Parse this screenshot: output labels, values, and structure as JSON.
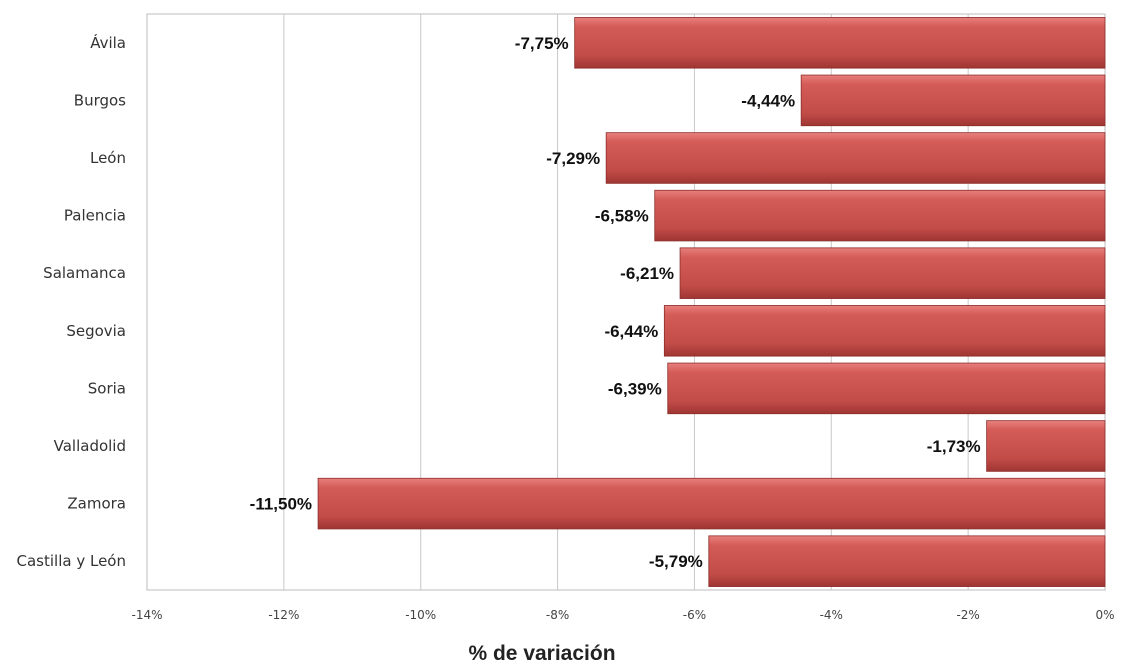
{
  "chart_data": {
    "type": "bar",
    "orientation": "horizontal",
    "categories": [
      "Ávila",
      "Burgos",
      "León",
      "Palencia",
      "Salamanca",
      "Segovia",
      "Soria",
      "Valladolid",
      "Zamora",
      "Castilla y León"
    ],
    "values": [
      -7.75,
      -4.44,
      -7.29,
      -6.58,
      -6.21,
      -6.44,
      -6.39,
      -1.73,
      -11.5,
      -5.79
    ],
    "data_labels": [
      "-7,75%",
      "-4,44%",
      "-7,29%",
      "-6,58%",
      "-6,21%",
      "-6,44%",
      "-6,39%",
      "-1,73%",
      "-11,50%",
      "-5,79%"
    ],
    "xticks": [
      -14,
      -12,
      -10,
      -8,
      -6,
      -4,
      -2,
      0
    ],
    "xtick_labels": [
      "-14%",
      "-12%",
      "-10%",
      "-8%",
      "-6%",
      "-4%",
      "-2%",
      "0%"
    ],
    "xlim": [
      -14,
      0
    ],
    "xlabel": "% de variación",
    "grid": true,
    "bar_color": "#c0504d",
    "legend": "none"
  }
}
